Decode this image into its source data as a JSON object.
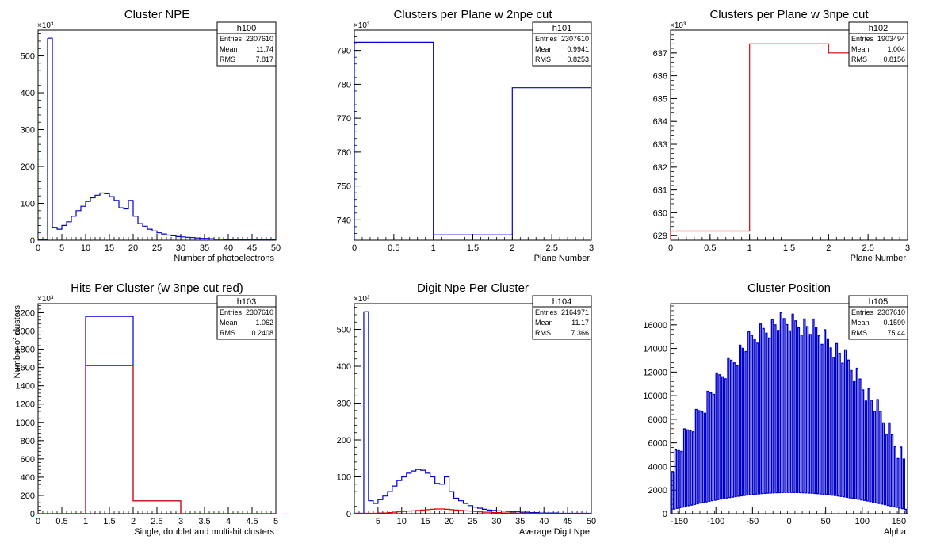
{
  "chart_data": [
    {
      "type": "histogram",
      "title": "Cluster NPE",
      "xlabel": "Number of photoelectrons",
      "ylabel": "",
      "exponent": "×10³",
      "xlim": [
        0,
        50
      ],
      "ylim": [
        0,
        570
      ],
      "xticks": [
        0,
        5,
        10,
        15,
        20,
        25,
        30,
        35,
        40,
        45,
        50
      ],
      "yticks": [
        0,
        100,
        200,
        300,
        400,
        500
      ],
      "stats": {
        "name": "h100",
        "rows": [
          [
            "Entries",
            "2307610"
          ],
          [
            "Mean",
            "11.74"
          ],
          [
            "RMS",
            "7.817"
          ]
        ]
      },
      "series": [
        {
          "color": "#0000cc",
          "x0": 2,
          "binw": 1,
          "values": [
            548,
            35,
            30,
            40,
            50,
            65,
            80,
            92,
            105,
            115,
            122,
            128,
            126,
            118,
            108,
            88,
            85,
            108,
            65,
            45,
            38,
            30,
            25,
            20,
            17,
            14,
            12,
            10,
            9,
            8,
            7,
            6,
            5,
            5,
            4,
            3,
            3,
            2,
            2,
            2,
            2,
            1,
            1,
            1,
            1,
            1,
            1,
            1
          ]
        }
      ]
    },
    {
      "type": "histogram",
      "title": "Clusters per Plane w 2npe cut",
      "xlabel": "Plane Number",
      "ylabel": "",
      "exponent": "×10³",
      "xlim": [
        0,
        3
      ],
      "ylim": [
        734,
        796
      ],
      "xticks": [
        0,
        0.5,
        1,
        1.5,
        2,
        2.5,
        3
      ],
      "yticks": [
        740,
        750,
        760,
        770,
        780,
        790
      ],
      "stats": {
        "name": "h101",
        "rows": [
          [
            "Entries",
            "2307610"
          ],
          [
            "Mean",
            "0.9941"
          ],
          [
            "RMS",
            "0.8253"
          ]
        ]
      },
      "series": [
        {
          "color": "#0000cc",
          "x0": 0,
          "binw": 1,
          "values": [
            792.4,
            735.6,
            779.0
          ]
        }
      ]
    },
    {
      "type": "histogram",
      "title": "Clusters per Plane w 3npe cut",
      "xlabel": "Plane Number",
      "ylabel": "",
      "exponent": "×10³",
      "xlim": [
        0,
        3
      ],
      "ylim": [
        628.8,
        638
      ],
      "xticks": [
        0,
        0.5,
        1,
        1.5,
        2,
        2.5,
        3
      ],
      "yticks": [
        629,
        630,
        631,
        632,
        633,
        634,
        635,
        636,
        637
      ],
      "stats": {
        "name": "h102",
        "rows": [
          [
            "Entries",
            "1903494"
          ],
          [
            "Mean",
            "1.004"
          ],
          [
            "RMS",
            "0.8156"
          ]
        ]
      },
      "series": [
        {
          "color": "#dd0000",
          "x0": 0,
          "binw": 1,
          "values": [
            629.2,
            637.4,
            637.0
          ]
        }
      ]
    },
    {
      "type": "histogram",
      "title": "Hits Per Cluster (w 3npe cut red)",
      "xlabel": "Single, doublet and multi-hit clusters",
      "ylabel": "Number of clusters",
      "exponent": "×10³",
      "xlim": [
        0,
        5
      ],
      "ylim": [
        0,
        2300
      ],
      "xticks": [
        0,
        0.5,
        1,
        1.5,
        2,
        2.5,
        3,
        3.5,
        4,
        4.5,
        5
      ],
      "yticks": [
        0,
        200,
        400,
        600,
        800,
        1000,
        1200,
        1400,
        1600,
        1800,
        2000,
        2200
      ],
      "stats": {
        "name": "h103",
        "rows": [
          [
            "Entries",
            "2307610"
          ],
          [
            "Mean",
            "1.062"
          ],
          [
            "RMS",
            "0.2408"
          ]
        ]
      },
      "series": [
        {
          "color": "#0000cc",
          "x0": 0,
          "binw": 1,
          "values": [
            0,
            2160,
            140,
            0,
            0
          ]
        },
        {
          "color": "#dd0000",
          "x0": 0,
          "binw": 1,
          "values": [
            0,
            1620,
            140,
            0,
            0
          ]
        }
      ]
    },
    {
      "type": "histogram",
      "title": "Digit Npe Per Cluster",
      "xlabel": "Average Digit Npe",
      "ylabel": "",
      "exponent": "×10³",
      "xlim": [
        0,
        50
      ],
      "ylim": [
        0,
        570
      ],
      "xticks": [
        5,
        10,
        15,
        20,
        25,
        30,
        35,
        40,
        45,
        50
      ],
      "yticks": [
        0,
        100,
        200,
        300,
        400,
        500
      ],
      "stats": {
        "name": "h104",
        "rows": [
          [
            "Entries",
            "2164971"
          ],
          [
            "Mean",
            "11.17"
          ],
          [
            "RMS",
            "7.366"
          ]
        ]
      },
      "series": [
        {
          "color": "#0000cc",
          "x0": 2,
          "binw": 1,
          "values": [
            548,
            35,
            28,
            38,
            48,
            60,
            75,
            90,
            100,
            110,
            116,
            120,
            118,
            110,
            100,
            82,
            80,
            100,
            60,
            42,
            35,
            28,
            22,
            18,
            15,
            12,
            10,
            9,
            8,
            7,
            6,
            5,
            5,
            4,
            4,
            3,
            3,
            2,
            2,
            2,
            2,
            1,
            1,
            1,
            1,
            1,
            1,
            1
          ]
        },
        {
          "color": "#dd0000",
          "x0": 2,
          "binw": 1,
          "values": [
            1,
            1,
            1,
            2,
            2,
            3,
            4,
            5,
            6,
            7,
            8,
            9,
            10,
            11,
            12,
            13,
            13,
            12,
            11,
            10,
            9,
            8,
            7,
            6,
            5,
            4,
            4,
            3,
            3,
            2,
            2,
            2,
            1,
            1,
            1,
            1,
            1,
            1,
            0,
            0,
            0,
            0,
            0,
            0,
            0,
            0,
            0,
            0
          ]
        }
      ]
    },
    {
      "type": "histogram",
      "title": "Cluster Position",
      "xlabel": "Alpha",
      "ylabel": "",
      "exponent": "",
      "xlim": [
        -162,
        162
      ],
      "ylim": [
        0,
        17800
      ],
      "xticks": [
        -150,
        -100,
        -50,
        0,
        50,
        100,
        150
      ],
      "yticks": [
        0,
        2000,
        4000,
        6000,
        8000,
        10000,
        12000,
        14000,
        16000
      ],
      "stats": {
        "name": "h105",
        "rows": [
          [
            "Entries",
            "2307610"
          ],
          [
            "Mean",
            "0.1599"
          ],
          [
            "RMS",
            "75.44"
          ]
        ]
      },
      "envelope": {
        "color": "#0000cc",
        "xmin": -160,
        "xmax": 160,
        "step": 2,
        "peak": 16200,
        "edge": 3800,
        "floor_center": 1800,
        "floor_edge": 300
      }
    }
  ]
}
